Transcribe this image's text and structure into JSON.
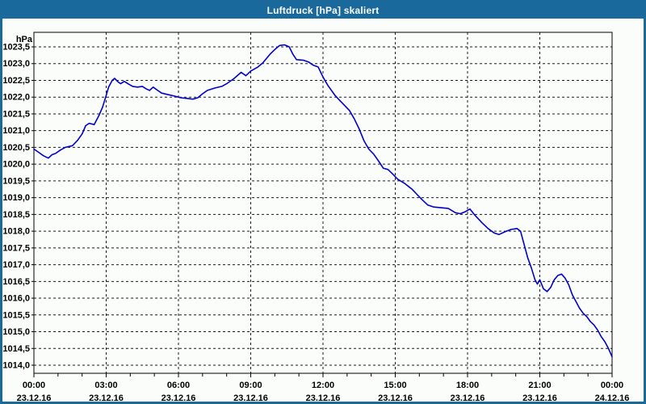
{
  "window": {
    "title": "Luftdruck [hPa] skaliert"
  },
  "chart_data": {
    "type": "line",
    "title": "Luftdruck [hPa] skaliert",
    "ylabel": "hPa",
    "xlabel": "",
    "unit_label": "hPa",
    "decimal_separator": ",",
    "grid": {
      "horizontal": true,
      "vertical": true,
      "style": "dashed"
    },
    "legend_position": "none",
    "y_axis": {
      "tick_min": 1014.0,
      "tick_max": 1023.5,
      "tick_step": 0.5,
      "ylim": [
        1013.76,
        1023.93
      ],
      "tick_labels": [
        "1014,0",
        "1014,5",
        "1015,0",
        "1015,5",
        "1016,0",
        "1016,5",
        "1017,0",
        "1017,5",
        "1018,0",
        "1018,5",
        "1019,0",
        "1019,5",
        "1020,0",
        "1020,5",
        "1021,0",
        "1021,5",
        "1022,0",
        "1022,5",
        "1023,0",
        "1023,5"
      ]
    },
    "x_axis": {
      "xlim_hours": [
        0,
        24
      ],
      "minor_tick_every_hours": 1,
      "major_tick_every_hours": 3,
      "major_ticks": [
        {
          "hour": 0,
          "time": "00:00",
          "date": "23.12.16"
        },
        {
          "hour": 3,
          "time": "03:00",
          "date": "23.12.16"
        },
        {
          "hour": 6,
          "time": "06:00",
          "date": "23.12.16"
        },
        {
          "hour": 9,
          "time": "09:00",
          "date": "23.12.16"
        },
        {
          "hour": 12,
          "time": "12:00",
          "date": "23.12.16"
        },
        {
          "hour": 15,
          "time": "15:00",
          "date": "23.12.16"
        },
        {
          "hour": 18,
          "time": "18:00",
          "date": "23.12.16"
        },
        {
          "hour": 21,
          "time": "21:00",
          "date": "23.12.16"
        },
        {
          "hour": 24,
          "time": "00:00",
          "date": "24.12.16"
        }
      ]
    },
    "series": [
      {
        "name": "Luftdruck",
        "color": "#0101c8",
        "points_hour_hpa": [
          [
            0.0,
            1020.45
          ],
          [
            0.2,
            1020.35
          ],
          [
            0.4,
            1020.25
          ],
          [
            0.6,
            1020.18
          ],
          [
            0.75,
            1020.28
          ],
          [
            0.9,
            1020.32
          ],
          [
            1.1,
            1020.42
          ],
          [
            1.3,
            1020.5
          ],
          [
            1.6,
            1020.55
          ],
          [
            1.8,
            1020.7
          ],
          [
            2.0,
            1020.9
          ],
          [
            2.15,
            1021.15
          ],
          [
            2.3,
            1021.22
          ],
          [
            2.5,
            1021.18
          ],
          [
            2.7,
            1021.45
          ],
          [
            2.85,
            1021.7
          ],
          [
            3.0,
            1022.05
          ],
          [
            3.1,
            1022.3
          ],
          [
            3.25,
            1022.5
          ],
          [
            3.35,
            1022.56
          ],
          [
            3.5,
            1022.45
          ],
          [
            3.6,
            1022.4
          ],
          [
            3.75,
            1022.47
          ],
          [
            3.9,
            1022.4
          ],
          [
            4.1,
            1022.32
          ],
          [
            4.3,
            1022.3
          ],
          [
            4.5,
            1022.32
          ],
          [
            4.65,
            1022.25
          ],
          [
            4.8,
            1022.2
          ],
          [
            4.95,
            1022.3
          ],
          [
            5.1,
            1022.22
          ],
          [
            5.3,
            1022.12
          ],
          [
            5.6,
            1022.07
          ],
          [
            5.9,
            1022.02
          ],
          [
            6.1,
            1021.98
          ],
          [
            6.4,
            1021.96
          ],
          [
            6.6,
            1021.94
          ],
          [
            6.8,
            1021.98
          ],
          [
            7.0,
            1022.1
          ],
          [
            7.2,
            1022.2
          ],
          [
            7.5,
            1022.27
          ],
          [
            7.8,
            1022.32
          ],
          [
            8.0,
            1022.4
          ],
          [
            8.3,
            1022.55
          ],
          [
            8.6,
            1022.74
          ],
          [
            8.8,
            1022.64
          ],
          [
            9.0,
            1022.78
          ],
          [
            9.3,
            1022.9
          ],
          [
            9.5,
            1023.02
          ],
          [
            9.8,
            1023.28
          ],
          [
            10.0,
            1023.42
          ],
          [
            10.2,
            1023.54
          ],
          [
            10.4,
            1023.56
          ],
          [
            10.6,
            1023.5
          ],
          [
            10.75,
            1023.28
          ],
          [
            10.9,
            1023.12
          ],
          [
            11.2,
            1023.1
          ],
          [
            11.4,
            1023.05
          ],
          [
            11.6,
            1022.95
          ],
          [
            11.8,
            1022.9
          ],
          [
            12.0,
            1022.6
          ],
          [
            12.2,
            1022.35
          ],
          [
            12.5,
            1022.05
          ],
          [
            12.7,
            1021.9
          ],
          [
            12.9,
            1021.75
          ],
          [
            13.1,
            1021.6
          ],
          [
            13.3,
            1021.35
          ],
          [
            13.5,
            1021.05
          ],
          [
            13.7,
            1020.7
          ],
          [
            13.9,
            1020.45
          ],
          [
            14.1,
            1020.3
          ],
          [
            14.3,
            1020.1
          ],
          [
            14.5,
            1019.88
          ],
          [
            14.7,
            1019.84
          ],
          [
            14.9,
            1019.7
          ],
          [
            15.1,
            1019.55
          ],
          [
            15.4,
            1019.42
          ],
          [
            15.7,
            1019.25
          ],
          [
            15.9,
            1019.1
          ],
          [
            16.1,
            1018.95
          ],
          [
            16.35,
            1018.78
          ],
          [
            16.6,
            1018.72
          ],
          [
            16.9,
            1018.7
          ],
          [
            17.2,
            1018.68
          ],
          [
            17.5,
            1018.55
          ],
          [
            17.7,
            1018.52
          ],
          [
            17.9,
            1018.58
          ],
          [
            18.1,
            1018.66
          ],
          [
            18.3,
            1018.48
          ],
          [
            18.6,
            1018.25
          ],
          [
            18.85,
            1018.08
          ],
          [
            19.1,
            1017.95
          ],
          [
            19.3,
            1017.9
          ],
          [
            19.55,
            1017.98
          ],
          [
            19.8,
            1018.05
          ],
          [
            20.05,
            1018.08
          ],
          [
            20.2,
            1018.0
          ],
          [
            20.35,
            1017.6
          ],
          [
            20.5,
            1017.2
          ],
          [
            20.65,
            1016.9
          ],
          [
            20.8,
            1016.55
          ],
          [
            20.9,
            1016.42
          ],
          [
            21.0,
            1016.55
          ],
          [
            21.15,
            1016.28
          ],
          [
            21.3,
            1016.2
          ],
          [
            21.45,
            1016.32
          ],
          [
            21.6,
            1016.55
          ],
          [
            21.75,
            1016.68
          ],
          [
            21.9,
            1016.72
          ],
          [
            22.05,
            1016.6
          ],
          [
            22.2,
            1016.4
          ],
          [
            22.35,
            1016.1
          ],
          [
            22.5,
            1015.9
          ],
          [
            22.65,
            1015.7
          ],
          [
            22.8,
            1015.55
          ],
          [
            22.95,
            1015.45
          ],
          [
            23.1,
            1015.3
          ],
          [
            23.25,
            1015.2
          ],
          [
            23.4,
            1015.05
          ],
          [
            23.55,
            1014.85
          ],
          [
            23.7,
            1014.7
          ],
          [
            23.85,
            1014.5
          ],
          [
            24.0,
            1014.25
          ]
        ]
      }
    ],
    "colors": {
      "titlebar_background": "#19699c",
      "titlebar_text": "#ffffff",
      "window_border": "#1b689b",
      "plot_background": "#fbfdfb",
      "grid_line": "#1a1a1a",
      "axis_line": "#000000",
      "curve": "#0101c8"
    }
  }
}
